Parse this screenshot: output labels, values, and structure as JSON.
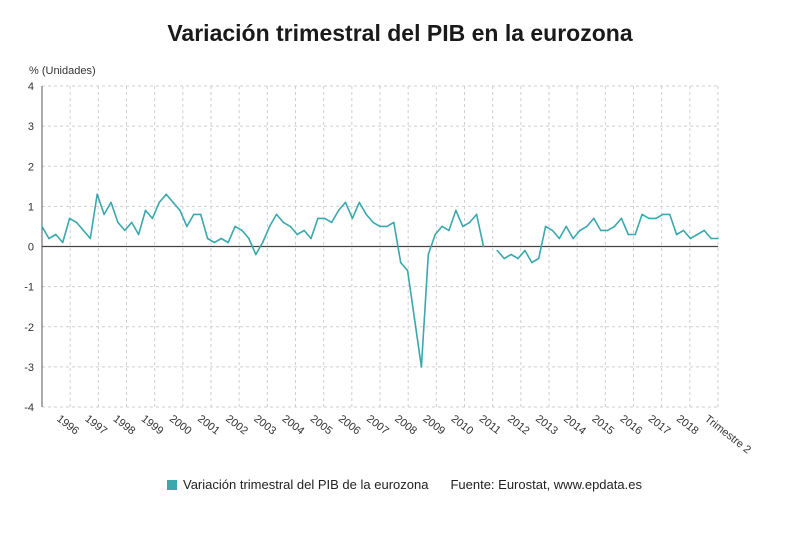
{
  "chart_data": {
    "type": "line",
    "title": "Variación trimestral del PIB en la eurozona",
    "ylabel": "% (Unidades)",
    "xlabel": "Trimestre 2",
    "ylim": [
      -4,
      4
    ],
    "yticks": [
      "4",
      "3",
      "2",
      "1",
      "0",
      "-1",
      "-2",
      "-3",
      "-4"
    ],
    "year_labels": [
      "1996",
      "1997",
      "1998",
      "1999",
      "2000",
      "2001",
      "2002",
      "2003",
      "2004",
      "2005",
      "2006",
      "2007",
      "2008",
      "2009",
      "2010",
      "2011",
      "2012",
      "2013",
      "2014",
      "2015",
      "2016",
      "2017",
      "2018"
    ],
    "series": [
      {
        "name": "Variación trimestral del PIB de la eurozona",
        "color": "#3aa8ad",
        "values": [
          0.5,
          0.2,
          0.3,
          0.1,
          0.7,
          0.6,
          0.4,
          0.2,
          1.3,
          0.8,
          1.1,
          0.6,
          0.4,
          0.6,
          0.3,
          0.9,
          0.7,
          1.1,
          1.3,
          1.1,
          0.9,
          0.5,
          0.8,
          0.8,
          0.2,
          0.1,
          0.2,
          0.1,
          0.5,
          0.4,
          0.2,
          -0.2,
          0.1,
          0.5,
          0.8,
          0.6,
          0.5,
          0.3,
          0.4,
          0.2,
          0.7,
          0.7,
          0.6,
          0.9,
          1.1,
          0.7,
          1.1,
          0.8,
          0.6,
          0.5,
          0.5,
          0.6,
          -0.4,
          -0.6,
          -1.8,
          -3.0,
          -0.2,
          0.3,
          0.5,
          0.4,
          0.9,
          0.5,
          0.6,
          0.8,
          0.0,
          null,
          -0.1,
          -0.3,
          -0.2,
          -0.3,
          -0.1,
          -0.4,
          -0.3,
          0.5,
          0.4,
          0.2,
          0.5,
          0.2,
          0.4,
          0.5,
          0.7,
          0.4,
          0.4,
          0.5,
          0.7,
          0.3,
          0.3,
          0.8,
          0.7,
          0.7,
          0.8,
          0.8,
          0.3,
          0.4,
          0.2,
          0.3,
          0.4,
          0.2,
          0.2
        ]
      }
    ],
    "legend": "Variación trimestral del PIB de la eurozona",
    "source": "Fuente: Eurostat, www.epdata.es"
  }
}
